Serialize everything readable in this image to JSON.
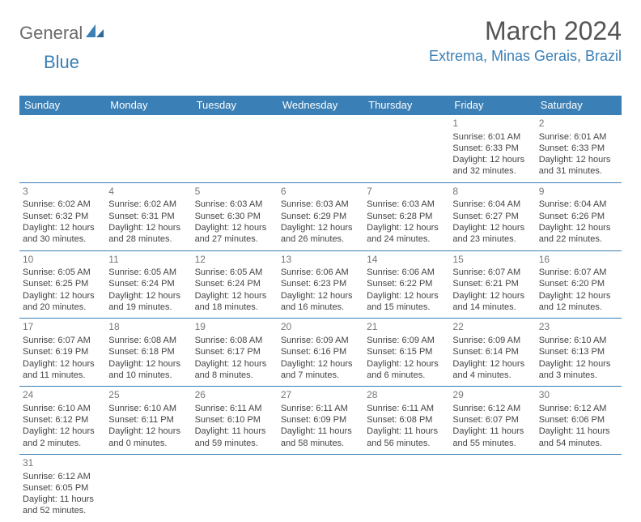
{
  "logo": {
    "part1": "General",
    "part2": "Blue"
  },
  "title": "March 2024",
  "location": "Extrema, Minas Gerais, Brazil",
  "weekdays": [
    "Sunday",
    "Monday",
    "Tuesday",
    "Wednesday",
    "Thursday",
    "Friday",
    "Saturday"
  ],
  "colors": {
    "header_bg": "#3a7fb5",
    "header_text": "#ffffff",
    "border": "#3a7fb5",
    "title_text": "#555555",
    "location_text": "#3a7fb5",
    "body_text": "#444444",
    "daynum_text": "#777777",
    "background": "#ffffff"
  },
  "fonts": {
    "month_title_pt": 32,
    "location_pt": 18,
    "weekday_pt": 13,
    "daynum_pt": 12,
    "detail_pt": 11
  },
  "weeks": [
    [
      null,
      null,
      null,
      null,
      null,
      {
        "n": "1",
        "sunrise": "Sunrise: 6:01 AM",
        "sunset": "Sunset: 6:33 PM",
        "day1": "Daylight: 12 hours",
        "day2": "and 32 minutes."
      },
      {
        "n": "2",
        "sunrise": "Sunrise: 6:01 AM",
        "sunset": "Sunset: 6:33 PM",
        "day1": "Daylight: 12 hours",
        "day2": "and 31 minutes."
      }
    ],
    [
      {
        "n": "3",
        "sunrise": "Sunrise: 6:02 AM",
        "sunset": "Sunset: 6:32 PM",
        "day1": "Daylight: 12 hours",
        "day2": "and 30 minutes."
      },
      {
        "n": "4",
        "sunrise": "Sunrise: 6:02 AM",
        "sunset": "Sunset: 6:31 PM",
        "day1": "Daylight: 12 hours",
        "day2": "and 28 minutes."
      },
      {
        "n": "5",
        "sunrise": "Sunrise: 6:03 AM",
        "sunset": "Sunset: 6:30 PM",
        "day1": "Daylight: 12 hours",
        "day2": "and 27 minutes."
      },
      {
        "n": "6",
        "sunrise": "Sunrise: 6:03 AM",
        "sunset": "Sunset: 6:29 PM",
        "day1": "Daylight: 12 hours",
        "day2": "and 26 minutes."
      },
      {
        "n": "7",
        "sunrise": "Sunrise: 6:03 AM",
        "sunset": "Sunset: 6:28 PM",
        "day1": "Daylight: 12 hours",
        "day2": "and 24 minutes."
      },
      {
        "n": "8",
        "sunrise": "Sunrise: 6:04 AM",
        "sunset": "Sunset: 6:27 PM",
        "day1": "Daylight: 12 hours",
        "day2": "and 23 minutes."
      },
      {
        "n": "9",
        "sunrise": "Sunrise: 6:04 AM",
        "sunset": "Sunset: 6:26 PM",
        "day1": "Daylight: 12 hours",
        "day2": "and 22 minutes."
      }
    ],
    [
      {
        "n": "10",
        "sunrise": "Sunrise: 6:05 AM",
        "sunset": "Sunset: 6:25 PM",
        "day1": "Daylight: 12 hours",
        "day2": "and 20 minutes."
      },
      {
        "n": "11",
        "sunrise": "Sunrise: 6:05 AM",
        "sunset": "Sunset: 6:24 PM",
        "day1": "Daylight: 12 hours",
        "day2": "and 19 minutes."
      },
      {
        "n": "12",
        "sunrise": "Sunrise: 6:05 AM",
        "sunset": "Sunset: 6:24 PM",
        "day1": "Daylight: 12 hours",
        "day2": "and 18 minutes."
      },
      {
        "n": "13",
        "sunrise": "Sunrise: 6:06 AM",
        "sunset": "Sunset: 6:23 PM",
        "day1": "Daylight: 12 hours",
        "day2": "and 16 minutes."
      },
      {
        "n": "14",
        "sunrise": "Sunrise: 6:06 AM",
        "sunset": "Sunset: 6:22 PM",
        "day1": "Daylight: 12 hours",
        "day2": "and 15 minutes."
      },
      {
        "n": "15",
        "sunrise": "Sunrise: 6:07 AM",
        "sunset": "Sunset: 6:21 PM",
        "day1": "Daylight: 12 hours",
        "day2": "and 14 minutes."
      },
      {
        "n": "16",
        "sunrise": "Sunrise: 6:07 AM",
        "sunset": "Sunset: 6:20 PM",
        "day1": "Daylight: 12 hours",
        "day2": "and 12 minutes."
      }
    ],
    [
      {
        "n": "17",
        "sunrise": "Sunrise: 6:07 AM",
        "sunset": "Sunset: 6:19 PM",
        "day1": "Daylight: 12 hours",
        "day2": "and 11 minutes."
      },
      {
        "n": "18",
        "sunrise": "Sunrise: 6:08 AM",
        "sunset": "Sunset: 6:18 PM",
        "day1": "Daylight: 12 hours",
        "day2": "and 10 minutes."
      },
      {
        "n": "19",
        "sunrise": "Sunrise: 6:08 AM",
        "sunset": "Sunset: 6:17 PM",
        "day1": "Daylight: 12 hours",
        "day2": "and 8 minutes."
      },
      {
        "n": "20",
        "sunrise": "Sunrise: 6:09 AM",
        "sunset": "Sunset: 6:16 PM",
        "day1": "Daylight: 12 hours",
        "day2": "and 7 minutes."
      },
      {
        "n": "21",
        "sunrise": "Sunrise: 6:09 AM",
        "sunset": "Sunset: 6:15 PM",
        "day1": "Daylight: 12 hours",
        "day2": "and 6 minutes."
      },
      {
        "n": "22",
        "sunrise": "Sunrise: 6:09 AM",
        "sunset": "Sunset: 6:14 PM",
        "day1": "Daylight: 12 hours",
        "day2": "and 4 minutes."
      },
      {
        "n": "23",
        "sunrise": "Sunrise: 6:10 AM",
        "sunset": "Sunset: 6:13 PM",
        "day1": "Daylight: 12 hours",
        "day2": "and 3 minutes."
      }
    ],
    [
      {
        "n": "24",
        "sunrise": "Sunrise: 6:10 AM",
        "sunset": "Sunset: 6:12 PM",
        "day1": "Daylight: 12 hours",
        "day2": "and 2 minutes."
      },
      {
        "n": "25",
        "sunrise": "Sunrise: 6:10 AM",
        "sunset": "Sunset: 6:11 PM",
        "day1": "Daylight: 12 hours",
        "day2": "and 0 minutes."
      },
      {
        "n": "26",
        "sunrise": "Sunrise: 6:11 AM",
        "sunset": "Sunset: 6:10 PM",
        "day1": "Daylight: 11 hours",
        "day2": "and 59 minutes."
      },
      {
        "n": "27",
        "sunrise": "Sunrise: 6:11 AM",
        "sunset": "Sunset: 6:09 PM",
        "day1": "Daylight: 11 hours",
        "day2": "and 58 minutes."
      },
      {
        "n": "28",
        "sunrise": "Sunrise: 6:11 AM",
        "sunset": "Sunset: 6:08 PM",
        "day1": "Daylight: 11 hours",
        "day2": "and 56 minutes."
      },
      {
        "n": "29",
        "sunrise": "Sunrise: 6:12 AM",
        "sunset": "Sunset: 6:07 PM",
        "day1": "Daylight: 11 hours",
        "day2": "and 55 minutes."
      },
      {
        "n": "30",
        "sunrise": "Sunrise: 6:12 AM",
        "sunset": "Sunset: 6:06 PM",
        "day1": "Daylight: 11 hours",
        "day2": "and 54 minutes."
      }
    ],
    [
      {
        "n": "31",
        "sunrise": "Sunrise: 6:12 AM",
        "sunset": "Sunset: 6:05 PM",
        "day1": "Daylight: 11 hours",
        "day2": "and 52 minutes."
      },
      null,
      null,
      null,
      null,
      null,
      null
    ]
  ]
}
